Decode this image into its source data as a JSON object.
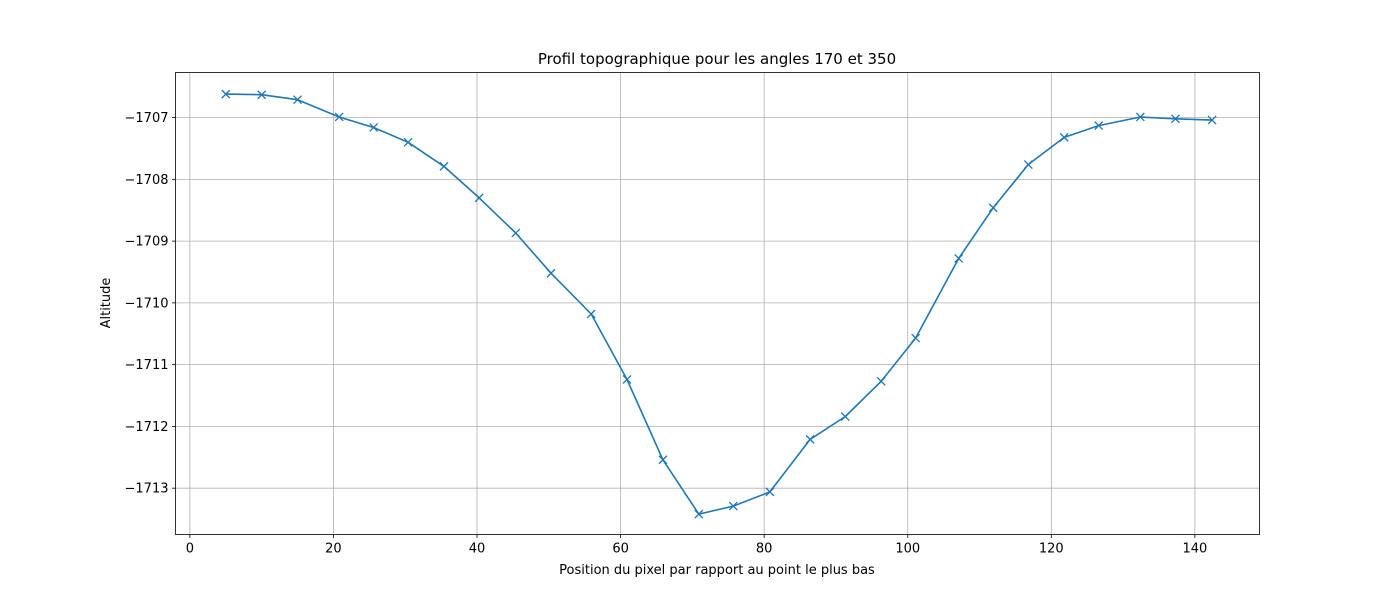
{
  "chart_data": {
    "type": "line",
    "title": "Profil topographique pour les angles 170 et 350",
    "xlabel": "Position du pixel par rapport au point le plus bas",
    "ylabel": "Altitude",
    "xlim": [
      -2,
      149
    ],
    "ylim": [
      -1713.75,
      -1706.27
    ],
    "xticks": [
      0,
      20,
      40,
      60,
      80,
      100,
      120,
      140
    ],
    "xtick_labels": [
      "0",
      "20",
      "40",
      "60",
      "80",
      "100",
      "120",
      "140"
    ],
    "yticks": [
      -1707,
      -1708,
      -1709,
      -1710,
      -1711,
      -1712,
      -1713
    ],
    "ytick_labels": [
      "−1707",
      "−1708",
      "−1709",
      "−1710",
      "−1711",
      "−1712",
      "−1713"
    ],
    "grid": true,
    "series": [
      {
        "color": "#1f77b4",
        "marker": "x",
        "x": [
          5,
          10,
          15,
          20.8,
          25.6,
          30.4,
          35.4,
          40.3,
          45.4,
          50.3,
          55.9,
          60.9,
          65.9,
          70.9,
          75.7,
          80.8,
          86.4,
          91.3,
          96.3,
          101.1,
          107.1,
          111.9,
          116.8,
          121.8,
          126.6,
          132.4,
          137.3,
          142.4
        ],
        "y": [
          -1706.62,
          -1706.63,
          -1706.71,
          -1706.99,
          -1707.16,
          -1707.4,
          -1707.79,
          -1708.3,
          -1708.87,
          -1709.52,
          -1710.18,
          -1711.24,
          -1712.54,
          -1713.42,
          -1713.29,
          -1713.06,
          -1712.21,
          -1711.84,
          -1711.27,
          -1710.57,
          -1709.28,
          -1708.46,
          -1707.76,
          -1707.32,
          -1707.13,
          -1706.99,
          -1707.02,
          -1707.04
        ]
      }
    ]
  }
}
